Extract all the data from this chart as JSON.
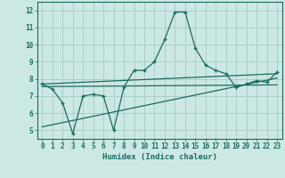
{
  "title": "",
  "xlabel": "Humidex (Indice chaleur)",
  "ylabel": "",
  "bg_color": "#cce8e5",
  "grid_color": "#aacfcc",
  "line_color": "#1a6b60",
  "xlim": [
    -0.5,
    23.5
  ],
  "ylim": [
    4.5,
    12.5
  ],
  "xticks": [
    0,
    1,
    2,
    3,
    4,
    5,
    6,
    7,
    8,
    9,
    10,
    11,
    12,
    13,
    14,
    15,
    16,
    17,
    18,
    19,
    20,
    21,
    22,
    23
  ],
  "yticks": [
    5,
    6,
    7,
    8,
    9,
    10,
    11,
    12
  ],
  "main_x": [
    0,
    1,
    2,
    3,
    4,
    5,
    6,
    7,
    8,
    9,
    10,
    11,
    12,
    13,
    14,
    15,
    16,
    17,
    18,
    19,
    20,
    21,
    22,
    23
  ],
  "main_y": [
    7.7,
    7.4,
    6.6,
    4.8,
    7.0,
    7.1,
    7.0,
    5.0,
    7.5,
    8.5,
    8.5,
    9.0,
    10.3,
    11.9,
    11.9,
    9.8,
    8.8,
    8.5,
    8.3,
    7.5,
    7.7,
    7.9,
    7.8,
    8.4
  ],
  "trend1_x": [
    0,
    23
  ],
  "trend1_y": [
    7.7,
    8.3
  ],
  "trend2_x": [
    0,
    23
  ],
  "trend2_y": [
    7.55,
    7.65
  ],
  "trend3_x": [
    0,
    23
  ],
  "trend3_y": [
    5.2,
    8.05
  ]
}
